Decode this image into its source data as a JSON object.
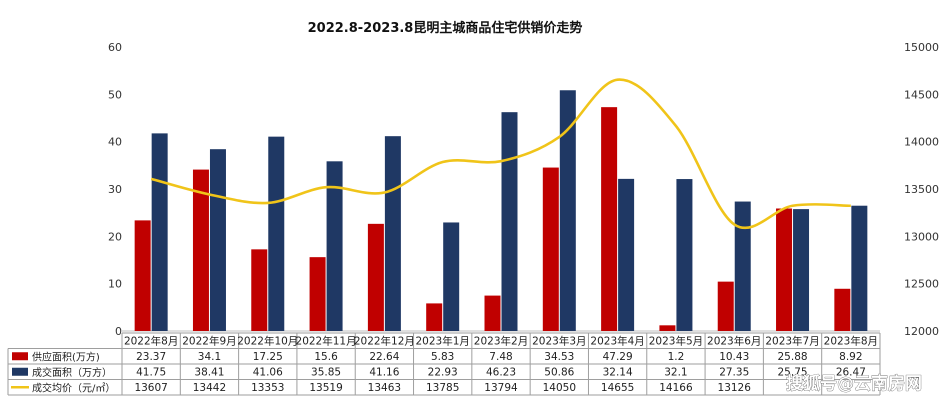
{
  "chart_data": {
    "type": "bar",
    "title": "2022.8-2023.8昆明主城商品住宅供销价走势",
    "categories": [
      "2022年8月",
      "2022年9月",
      "2022年10月",
      "2022年11月",
      "2022年12月",
      "2023年1月",
      "2023年2月",
      "2023年3月",
      "2023年4月",
      "2023年5月",
      "2023年6月",
      "2023年7月",
      "2023年8月"
    ],
    "series": [
      {
        "name": "供应面积(万方)",
        "type": "bar",
        "axis": "left",
        "color": "#c00000",
        "values": [
          23.37,
          34.1,
          17.25,
          15.6,
          22.64,
          5.83,
          7.48,
          34.53,
          47.29,
          1.2,
          10.43,
          25.88,
          8.92
        ]
      },
      {
        "name": "成交面积（万方）",
        "type": "bar",
        "axis": "left",
        "color": "#1f3864",
        "values": [
          41.75,
          38.41,
          41.06,
          35.85,
          41.16,
          22.93,
          46.23,
          50.86,
          32.14,
          32.1,
          27.35,
          25.75,
          26.47
        ]
      },
      {
        "name": "成交均价（元/㎡）",
        "type": "line",
        "axis": "right",
        "color": "#f0c419",
        "values": [
          13607,
          13442,
          13353,
          13519,
          13463,
          13785,
          13794,
          14050,
          14655,
          14166,
          13126,
          13323,
          13323
        ]
      }
    ],
    "table_values": [
      [
        "23.37",
        "34.1",
        "17.25",
        "15.6",
        "22.64",
        "5.83",
        "7.48",
        "34.53",
        "47.29",
        "1.2",
        "10.43",
        "25.88",
        "8.92"
      ],
      [
        "41.75",
        "38.41",
        "41.06",
        "35.85",
        "41.16",
        "22.93",
        "46.23",
        "50.86",
        "32.14",
        "32.1",
        "27.35",
        "25.75",
        "26.47"
      ],
      [
        "13607",
        "13442",
        "13353",
        "13519",
        "13463",
        "13785",
        "13794",
        "14050",
        "14655",
        "14166",
        "13126",
        "",
        ""
      ]
    ],
    "y_left": {
      "min": 0,
      "max": 60,
      "ticks": [
        0,
        10,
        20,
        30,
        40,
        50,
        60
      ]
    },
    "y_right": {
      "min": 12000,
      "max": 15000,
      "ticks": [
        12000,
        12500,
        13000,
        13500,
        14000,
        14500,
        15000
      ]
    },
    "grid": false,
    "legend": "data-table-bottom"
  },
  "watermark": "搜狐号@云南房网"
}
